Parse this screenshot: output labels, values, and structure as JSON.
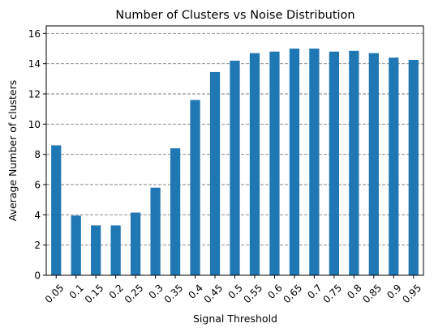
{
  "chart_data": {
    "type": "bar",
    "title": "Number of Clusters vs Noise Distribution",
    "xlabel": "Signal Threshold",
    "ylabel": "Average Number of clusters",
    "categories": [
      "0.05",
      "0.1",
      "0.15",
      "0.2",
      "0.25",
      "0.3",
      "0.35",
      "0.4",
      "0.45",
      "0.5",
      "0.55",
      "0.6",
      "0.65",
      "0.7",
      "0.75",
      "0.8",
      "0.85",
      "0.9",
      "0.95"
    ],
    "values": [
      8.6,
      3.95,
      3.3,
      3.3,
      4.15,
      5.8,
      8.4,
      11.6,
      13.45,
      14.2,
      14.7,
      14.8,
      15.0,
      15.0,
      14.8,
      14.85,
      14.7,
      14.4,
      14.25
    ],
    "ylim": [
      0,
      16.5
    ],
    "yticks": [
      0,
      2,
      4,
      6,
      8,
      10,
      12,
      14,
      16
    ],
    "grid": "y-dashed",
    "bar_color": "#1f77b4",
    "grid_color": "#808080"
  }
}
